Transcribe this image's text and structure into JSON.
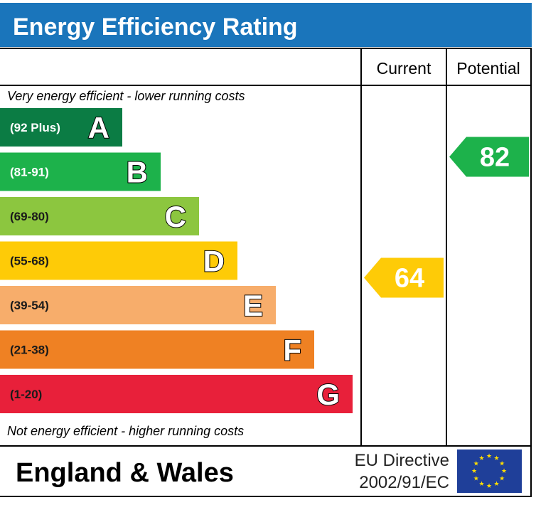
{
  "chart_data": {
    "type": "bar",
    "title": "Energy Efficiency Rating",
    "columns": [
      "Current",
      "Potential"
    ],
    "top_note": "Very energy efficient - lower running costs",
    "bottom_note": "Not energy efficient - higher running costs",
    "bands": [
      {
        "letter": "A",
        "range": "(92 Plus)",
        "color": "#0b7c44"
      },
      {
        "letter": "B",
        "range": "(81-91)",
        "color": "#1db24b"
      },
      {
        "letter": "C",
        "range": "(69-80)",
        "color": "#8cc63f"
      },
      {
        "letter": "D",
        "range": "(55-68)",
        "color": "#fecb07"
      },
      {
        "letter": "E",
        "range": "(39-54)",
        "color": "#f7ad6b"
      },
      {
        "letter": "F",
        "range": "(21-38)",
        "color": "#ef8123"
      },
      {
        "letter": "G",
        "range": "(1-20)",
        "color": "#e8203a"
      }
    ],
    "current": {
      "value": 64,
      "band": "D",
      "color": "#fecb07"
    },
    "potential": {
      "value": 82,
      "band": "B",
      "color": "#1db24b"
    }
  },
  "footer": {
    "region": "England & Wales",
    "directive_line1": "EU Directive",
    "directive_line2": "2002/91/EC"
  },
  "colors": {
    "header_bg": "#1a75bb",
    "eu_flag_bg": "#1f3f99",
    "eu_star": "#ffdd00"
  }
}
